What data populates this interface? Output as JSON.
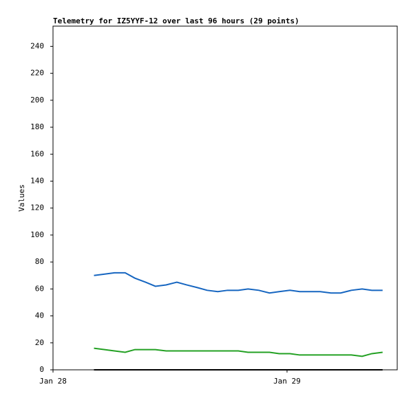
{
  "chart_data": {
    "type": "line",
    "title": "Telemetry for IZ5YYF-12 over last 96 hours (29 points)",
    "y_label": "Values",
    "x": [
      4.2,
      5.3,
      6.3,
      7.4,
      8.4,
      9.5,
      10.5,
      11.6,
      12.7,
      13.7,
      14.8,
      15.8,
      16.9,
      17.9,
      19.0,
      20.0,
      21.1,
      22.2,
      23.2,
      24.3,
      25.3,
      26.4,
      27.4,
      28.5,
      29.5,
      30.6,
      31.7,
      32.7,
      33.8
    ],
    "series": [
      {
        "color": "#1565c0",
        "values": [
          70,
          71,
          72,
          72,
          68,
          65,
          62,
          63,
          65,
          63,
          61,
          59,
          58,
          59,
          59,
          60,
          59,
          57,
          58,
          59,
          58,
          58,
          58,
          57,
          57,
          59,
          60,
          59,
          59
        ]
      },
      {
        "color": "#22a022",
        "values": [
          16,
          15,
          14,
          13,
          15,
          15,
          15,
          14,
          14,
          14,
          14,
          14,
          14,
          14,
          14,
          13,
          13,
          13,
          12,
          12,
          11,
          11,
          11,
          11,
          11,
          11,
          10,
          12,
          13
        ]
      },
      {
        "color": "#000000",
        "values": [
          0,
          0,
          0,
          0,
          0,
          0,
          0,
          0,
          0,
          0,
          0,
          0,
          0,
          0,
          0,
          0,
          0,
          0,
          0,
          0,
          0,
          0,
          0,
          0,
          0,
          0,
          0,
          0,
          0
        ]
      }
    ],
    "xlim": [
      0,
      35.3
    ],
    "xticks": [
      {
        "value": 0,
        "label": "Jan 28"
      },
      {
        "value": 24,
        "label": "Jan 29"
      }
    ],
    "ylim": [
      0,
      255
    ],
    "yticks": [
      0,
      20,
      40,
      60,
      80,
      100,
      120,
      140,
      160,
      180,
      200,
      220,
      240
    ]
  }
}
